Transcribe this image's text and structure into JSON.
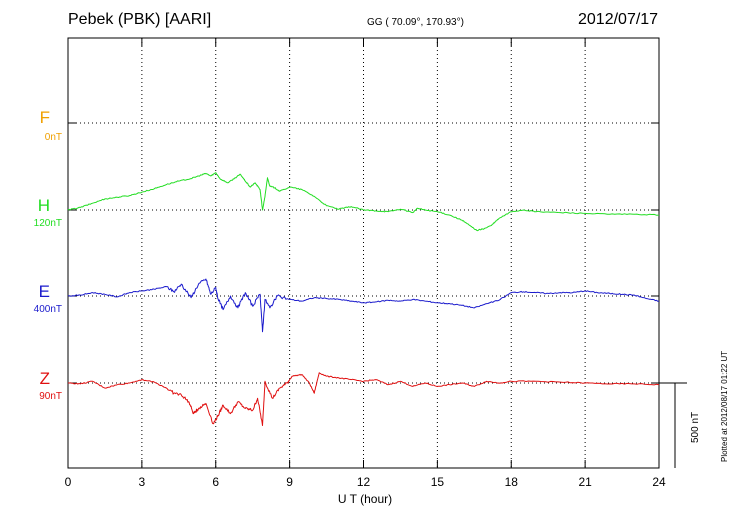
{
  "header": {
    "station": "Pebek (PBK)  [AARI]",
    "coords": "GG ( 70.09°, 170.93°)",
    "date": "2012/07/17"
  },
  "footer": {
    "plotted": "Plotted at 2012/08/17 01:22 UT"
  },
  "scale_bar": {
    "label": "500 nT",
    "value": 500
  },
  "chart_data": {
    "type": "line",
    "title": "Pebek (PBK)  [AARI]",
    "xlabel": "U T (hour)",
    "ylabel": "",
    "xlim": [
      0,
      24
    ],
    "xticks": [
      0,
      3,
      6,
      9,
      12,
      15,
      18,
      21,
      24
    ],
    "grid": true,
    "series": [
      {
        "name": "F",
        "offset_label": "0nT",
        "color": "#f0a000",
        "baseline_nT": 0,
        "x": [],
        "y": []
      },
      {
        "name": "H",
        "offset_label": "120nT",
        "color": "#22dd22",
        "baseline_nT": 120,
        "x": [
          0,
          0.5,
          1,
          1.5,
          2,
          2.5,
          3,
          3.5,
          4,
          4.5,
          5,
          5.3,
          5.6,
          5.8,
          6,
          6.2,
          6.5,
          6.8,
          7,
          7.2,
          7.4,
          7.6,
          7.8,
          7.9,
          8.0,
          8.1,
          8.2,
          8.4,
          8.6,
          9,
          9.5,
          10,
          10.5,
          11,
          11.5,
          12,
          12.5,
          13,
          13.5,
          14,
          14.2,
          14.5,
          15,
          15.5,
          16,
          16.3,
          16.6,
          16.9,
          17.2,
          17.5,
          18,
          18.5,
          19,
          20,
          21,
          22,
          23,
          24
        ],
        "y": [
          120,
          135,
          160,
          185,
          195,
          205,
          225,
          245,
          270,
          290,
          305,
          320,
          335,
          320,
          340,
          300,
          280,
          310,
          330,
          290,
          255,
          280,
          240,
          120,
          200,
          310,
          260,
          250,
          230,
          255,
          240,
          200,
          145,
          125,
          140,
          120,
          115,
          110,
          125,
          105,
          130,
          120,
          110,
          90,
          60,
          30,
          0,
          10,
          30,
          70,
          110,
          120,
          110,
          105,
          100,
          95,
          95,
          90
        ]
      },
      {
        "name": "E",
        "offset_label": "400nT",
        "color": "#1a1acc",
        "baseline_nT": 400,
        "x": [
          0,
          0.5,
          1,
          1.5,
          2,
          2.5,
          3,
          3.5,
          4,
          4.3,
          4.6,
          5,
          5.3,
          5.6,
          5.8,
          6.0,
          6.1,
          6.3,
          6.6,
          6.9,
          7.2,
          7.5,
          7.8,
          7.9,
          8.0,
          8.2,
          8.5,
          9,
          9.5,
          10,
          10.5,
          11,
          11.5,
          12,
          12.5,
          13,
          13.5,
          14,
          14.5,
          15,
          15.5,
          16,
          16.5,
          17,
          17.5,
          18,
          18.5,
          19,
          19.5,
          20,
          20.5,
          21,
          21.5,
          22,
          22.5,
          23,
          23.5,
          24
        ],
        "y": [
          400,
          405,
          420,
          410,
          395,
          420,
          430,
          440,
          455,
          425,
          470,
          390,
          470,
          500,
          410,
          450,
          380,
          320,
          400,
          330,
          420,
          340,
          410,
          190,
          380,
          330,
          400,
          380,
          370,
          390,
          385,
          380,
          370,
          360,
          365,
          375,
          370,
          380,
          370,
          360,
          355,
          345,
          330,
          355,
          375,
          420,
          425,
          420,
          415,
          420,
          420,
          430,
          420,
          415,
          410,
          405,
          385,
          370
        ]
      },
      {
        "name": "Z",
        "offset_label": "90nT",
        "color": "#e01010",
        "baseline_nT": 90,
        "x": [
          0,
          0.5,
          1,
          1.5,
          2,
          2.5,
          3,
          3.5,
          4,
          4.3,
          4.6,
          4.9,
          5.1,
          5.3,
          5.6,
          5.9,
          6.1,
          6.3,
          6.6,
          6.9,
          7.2,
          7.5,
          7.7,
          7.9,
          8.0,
          8.3,
          8.6,
          8.9,
          9.1,
          9.5,
          9.8,
          10.0,
          10.2,
          10.5,
          11,
          11.5,
          12,
          12.5,
          13,
          13.5,
          14,
          14.5,
          15,
          15.5,
          16,
          16.5,
          17,
          17.5,
          18,
          19,
          20,
          21,
          22,
          23,
          24
        ],
        "y": [
          90,
          85,
          100,
          60,
          80,
          90,
          110,
          95,
          60,
          30,
          20,
          -20,
          -90,
          -60,
          -30,
          -150,
          -100,
          -40,
          -90,
          -20,
          -60,
          -70,
          0,
          -160,
          100,
          0,
          60,
          90,
          130,
          140,
          90,
          30,
          150,
          130,
          120,
          110,
          100,
          110,
          80,
          100,
          70,
          90,
          70,
          80,
          90,
          70,
          100,
          90,
          100,
          100,
          95,
          90,
          85,
          85,
          80
        ]
      }
    ]
  }
}
